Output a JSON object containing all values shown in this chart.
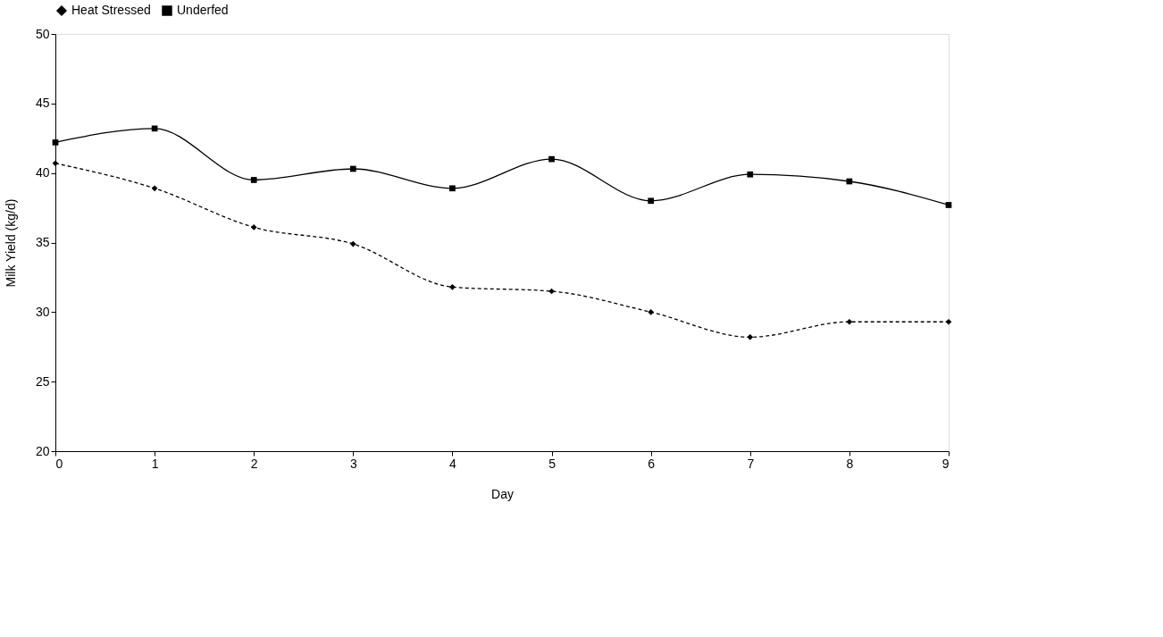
{
  "chart_data": {
    "type": "line",
    "xlabel": "Day",
    "ylabel": "Milk Yield (kg/d)",
    "x": [
      0,
      1,
      2,
      3,
      4,
      5,
      6,
      7,
      8,
      9
    ],
    "series": [
      {
        "name": "Heat Stressed",
        "color": "#000000",
        "marker": "diamond",
        "line_style": "dashed",
        "values": [
          40.7,
          38.9,
          36.1,
          34.9,
          31.8,
          31.5,
          30.0,
          28.2,
          29.3,
          29.3
        ]
      },
      {
        "name": "Underfed",
        "color": "#000000",
        "marker": "square",
        "line_style": "solid",
        "values": [
          42.2,
          43.2,
          39.5,
          40.3,
          38.9,
          41.0,
          38.0,
          39.9,
          39.4,
          37.7
        ]
      }
    ],
    "xlim": [
      0,
      9
    ],
    "xticks": [
      0,
      1,
      2,
      3,
      4,
      5,
      6,
      7,
      8,
      9
    ],
    "ylim": [
      20,
      50
    ],
    "yticks": [
      20,
      25,
      30,
      35,
      40,
      45,
      50
    ],
    "grid": false,
    "legend": "top"
  }
}
